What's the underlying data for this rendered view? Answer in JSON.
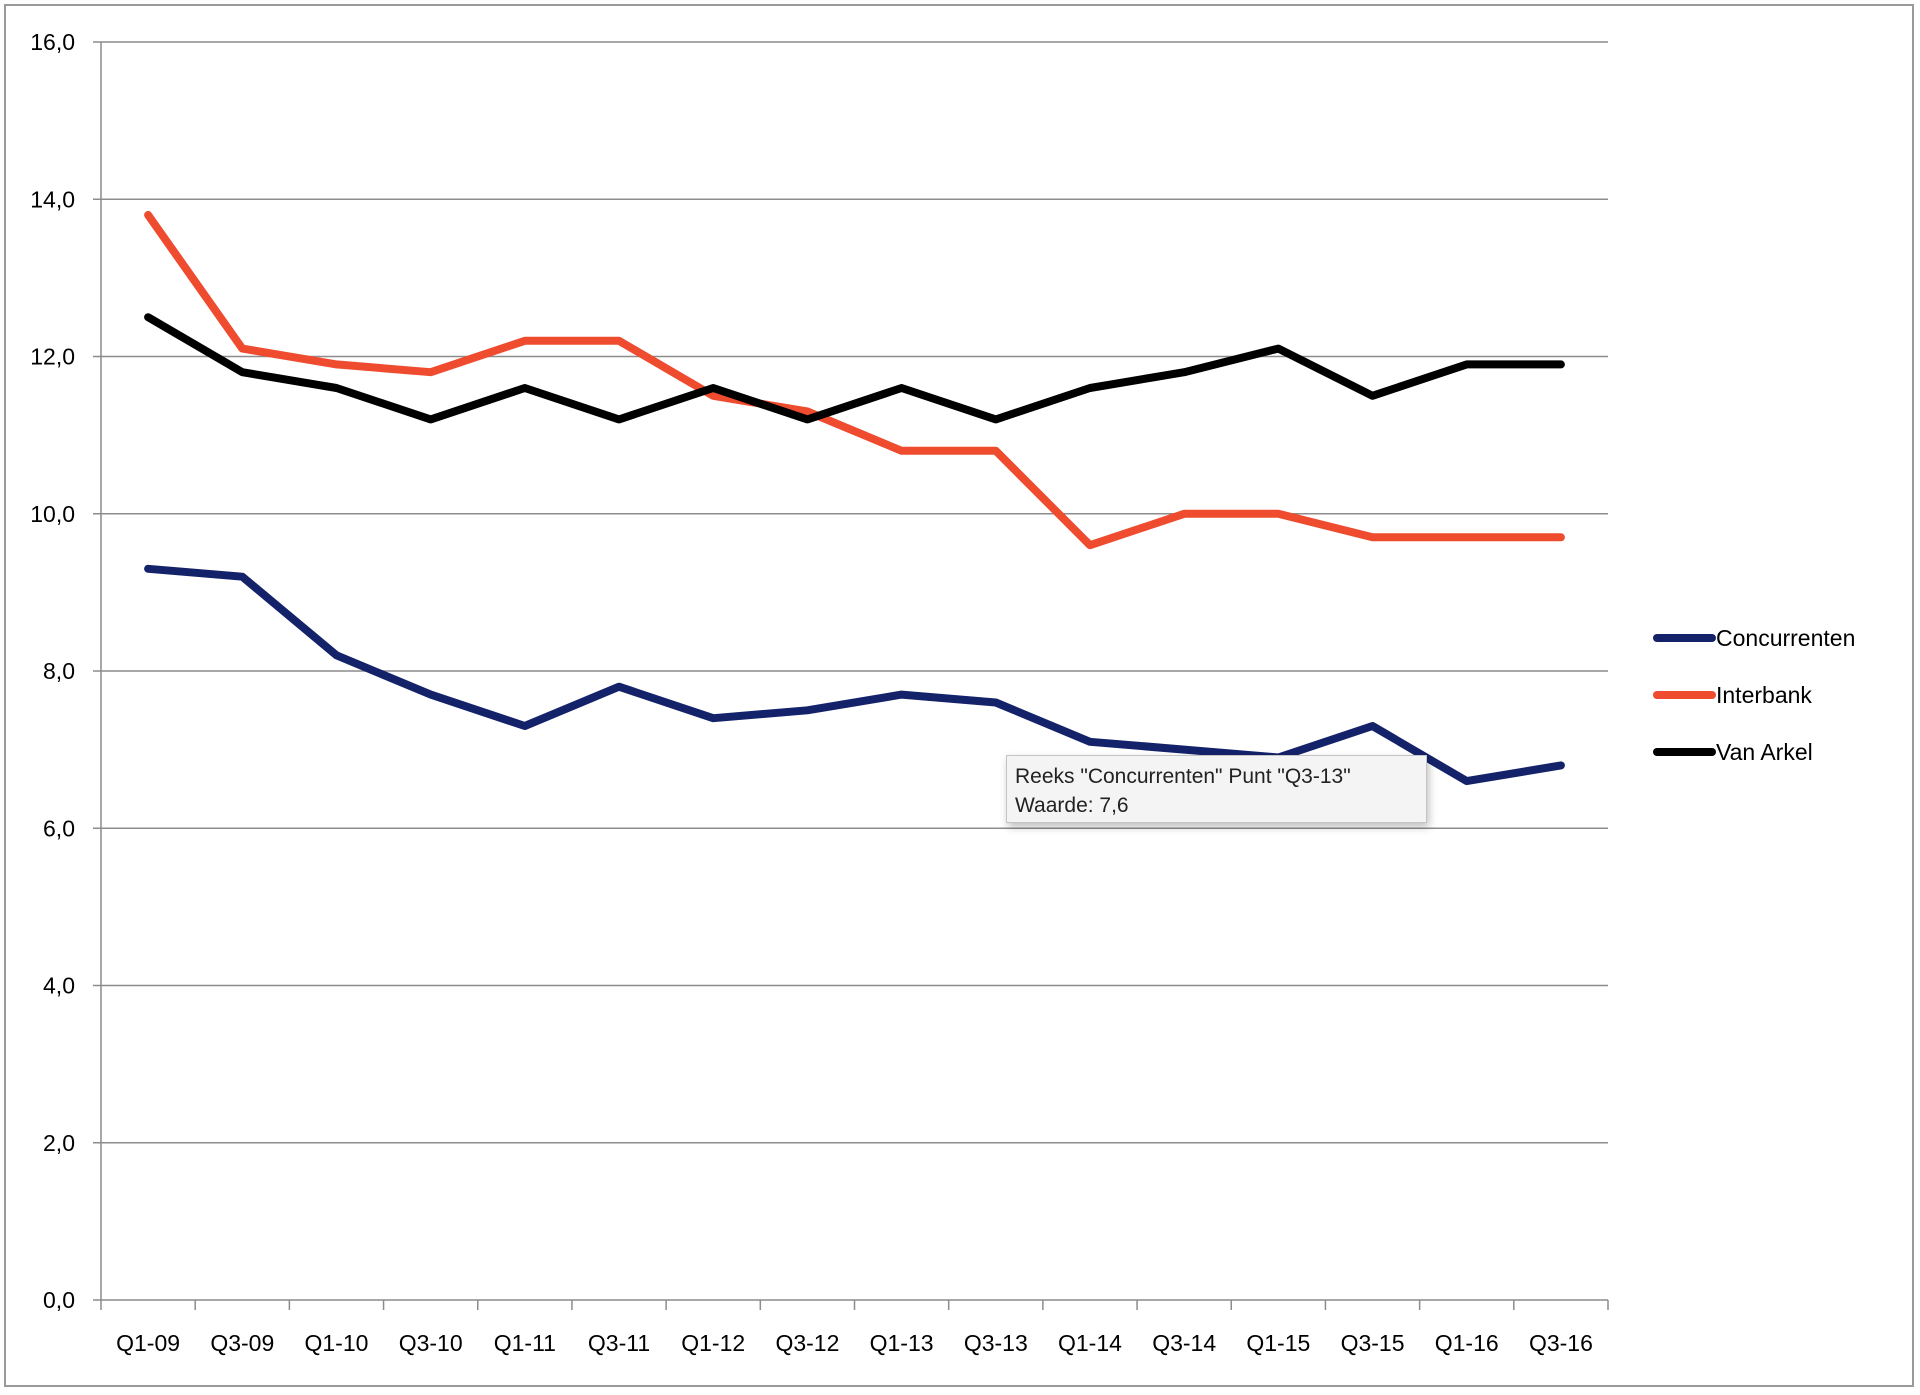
{
  "chart_data": {
    "type": "line",
    "categories": [
      "Q1-09",
      "Q3-09",
      "Q1-10",
      "Q3-10",
      "Q1-11",
      "Q3-11",
      "Q1-12",
      "Q3-12",
      "Q1-13",
      "Q3-13",
      "Q1-14",
      "Q3-14",
      "Q1-15",
      "Q3-15",
      "Q1-16",
      "Q3-16"
    ],
    "series": [
      {
        "name": "Concurrenten",
        "color": "#14226a",
        "values": [
          9.3,
          9.2,
          8.2,
          7.7,
          7.3,
          7.8,
          7.4,
          7.5,
          7.7,
          7.6,
          7.1,
          7.0,
          6.9,
          7.3,
          6.6,
          6.8
        ]
      },
      {
        "name": "Interbank",
        "color": "#ef4b2f",
        "values": [
          13.8,
          12.1,
          11.9,
          11.8,
          12.2,
          12.2,
          11.5,
          11.3,
          10.8,
          10.8,
          9.6,
          10.0,
          10.0,
          9.7,
          9.7,
          9.7
        ]
      },
      {
        "name": "Van Arkel",
        "color": "#000000",
        "values": [
          12.5,
          11.8,
          11.6,
          11.2,
          11.6,
          11.2,
          11.6,
          11.2,
          11.6,
          11.2,
          11.6,
          11.8,
          12.1,
          11.5,
          11.9,
          11.9
        ]
      }
    ],
    "y_ticks": [
      "0,0",
      "2,0",
      "4,0",
      "6,0",
      "8,0",
      "10,0",
      "12,0",
      "14,0",
      "16,0"
    ],
    "ylim": [
      0,
      16
    ],
    "grid": true,
    "legend_position": "right"
  },
  "tooltip": {
    "line1": "Reeks \"Concurrenten\" Punt \"Q3-13\"",
    "line2": "Waarde: 7,6"
  }
}
